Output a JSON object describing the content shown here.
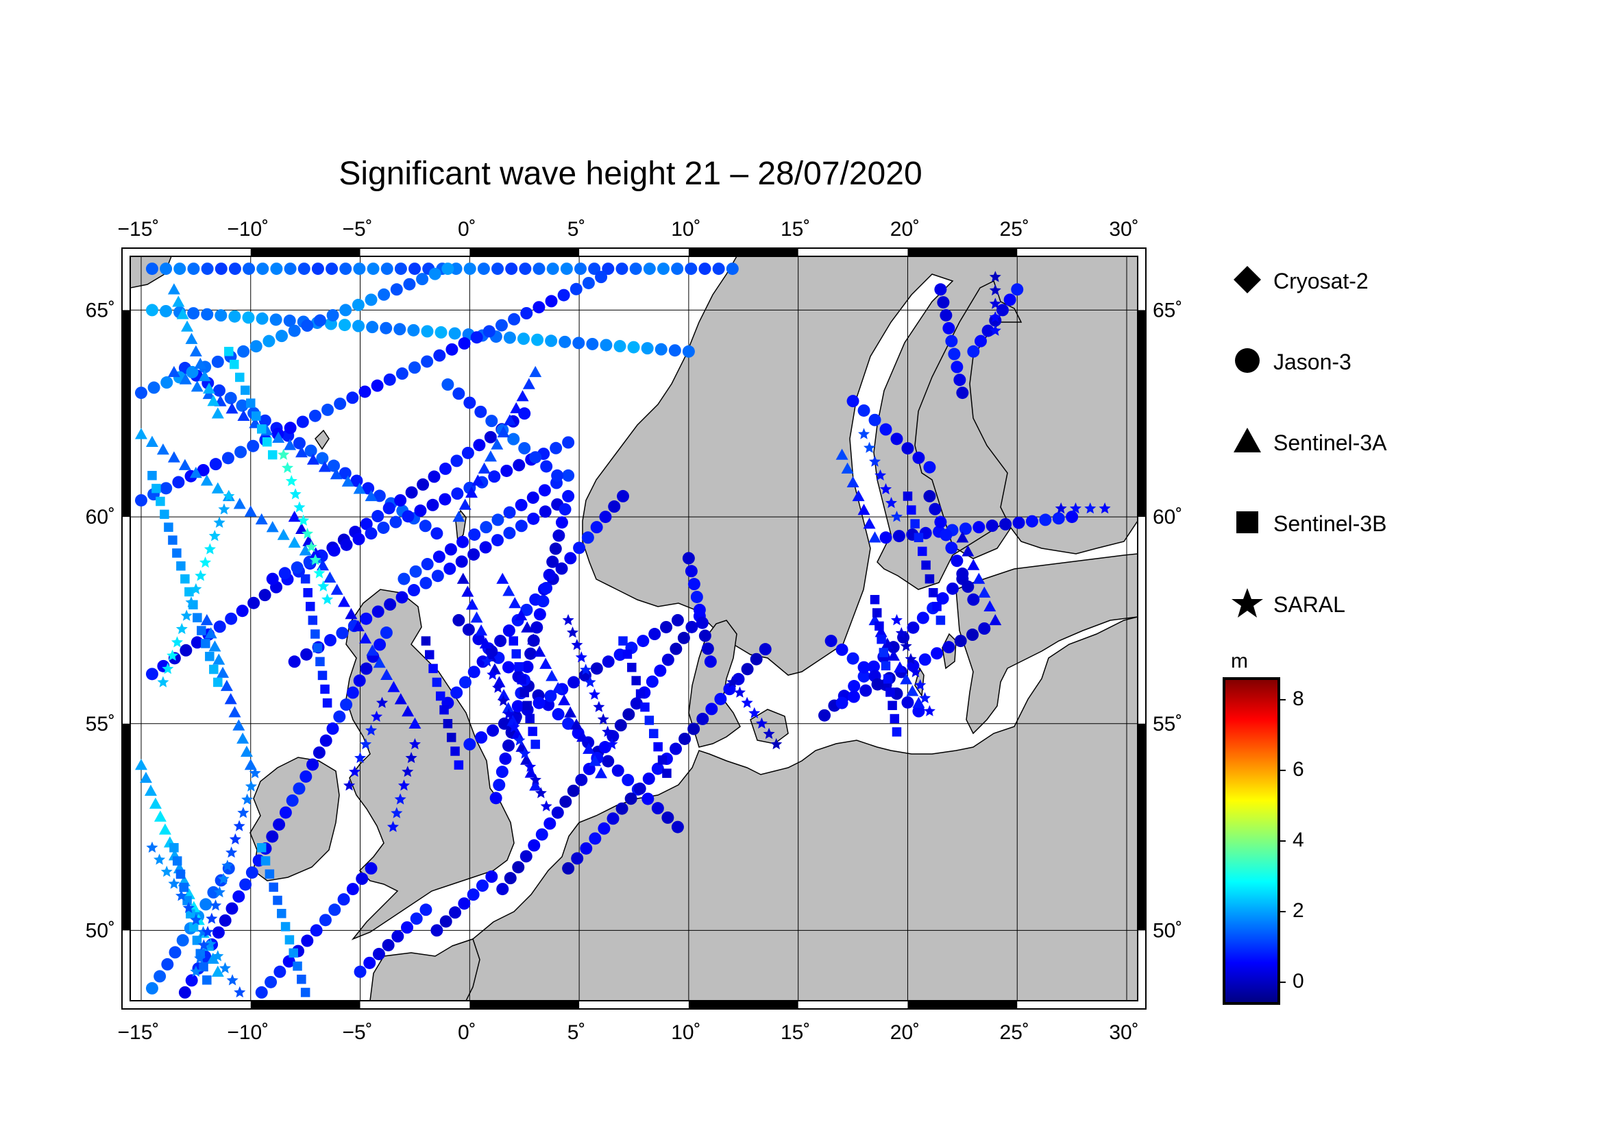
{
  "title": "Significant wave height 21 – 28/07/2020",
  "axes": {
    "lon_ticks": [
      -15,
      -10,
      -5,
      0,
      5,
      10,
      15,
      20,
      25,
      30
    ],
    "lon_labels": [
      "−15˚",
      "−10˚",
      "−5˚",
      "0˚",
      "5˚",
      "10˚",
      "15˚",
      "20˚",
      "25˚",
      "30˚"
    ],
    "lat_ticks": [
      50,
      55,
      60,
      65
    ],
    "lat_labels": [
      "50˚",
      "55˚",
      "60˚",
      "65˚"
    ],
    "lon_range": [
      -15.5,
      30.5
    ],
    "lat_range": [
      48.3,
      66.3
    ]
  },
  "legend": {
    "items": [
      {
        "label": "Cryosat-2",
        "symbol": "diamond-icon"
      },
      {
        "label": "Jason-3",
        "symbol": "circle-icon"
      },
      {
        "label": "Sentinel-3A",
        "symbol": "triangle-icon"
      },
      {
        "label": "Sentinel-3B",
        "symbol": "square-icon"
      },
      {
        "label": "SARAL",
        "symbol": "star-icon"
      }
    ]
  },
  "colorbar": {
    "unit": "m",
    "ticks": [
      "8",
      "6",
      "4",
      "2",
      "0"
    ],
    "range": [
      -0.6,
      8.6
    ],
    "colors": [
      "#00007f",
      "#0000ff",
      "#007fff",
      "#00ffff",
      "#7fff7f",
      "#ffff00",
      "#ff7f00",
      "#ff0000",
      "#7f0000"
    ]
  },
  "colors": {
    "land": "#bebebe",
    "sea": "#ffffff"
  },
  "chart_data": {
    "type": "scatter",
    "title": "Significant wave height 21 – 28/07/2020",
    "xlabel": "",
    "ylabel": "",
    "xlim": [
      -15.5,
      30.5
    ],
    "ylim": [
      48.3,
      66.3
    ],
    "series": [
      {
        "name": "Jason-3",
        "marker": "circle",
        "tracks": [
          {
            "from": [
              -14.5,
              66.0
            ],
            "to": [
              12.0,
              66.0
            ],
            "swh": 1.4
          },
          {
            "from": [
              -14.5,
              65.0
            ],
            "to": [
              10.0,
              64.0
            ],
            "swh": 1.8
          },
          {
            "from": [
              -13.0,
              63.6
            ],
            "to": [
              -1.5,
              59.6
            ],
            "swh": 1.1
          },
          {
            "from": [
              -15.0,
              63.0
            ],
            "to": [
              -1.0,
              66.0
            ],
            "swh": 1.6
          },
          {
            "from": [
              -15.0,
              60.4
            ],
            "to": [
              6.0,
              65.8
            ],
            "swh": 0.9
          },
          {
            "from": [
              -14.5,
              56.2
            ],
            "to": [
              2.5,
              62.5
            ],
            "swh": 0.5
          },
          {
            "from": [
              -8.0,
              56.5
            ],
            "to": [
              4.0,
              60.3
            ],
            "swh": 0.6
          },
          {
            "from": [
              -9.0,
              58.5
            ],
            "to": [
              4.5,
              61.8
            ],
            "swh": 0.7
          },
          {
            "from": [
              -3.0,
              58.5
            ],
            "to": [
              4.5,
              61.0
            ],
            "swh": 0.8
          },
          {
            "from": [
              -1.0,
              63.2
            ],
            "to": [
              4.0,
              61.0
            ],
            "swh": 1.2
          },
          {
            "from": [
              -0.5,
              57.5
            ],
            "to": [
              9.5,
              52.5
            ],
            "swh": 0.4
          },
          {
            "from": [
              -1.0,
              55.5
            ],
            "to": [
              7.0,
              60.5
            ],
            "swh": 0.5
          },
          {
            "from": [
              0.0,
              54.5
            ],
            "to": [
              9.5,
              57.5
            ],
            "swh": 0.4
          },
          {
            "from": [
              1.5,
              51.0
            ],
            "to": [
              10.5,
              57.6
            ],
            "swh": 0.3
          },
          {
            "from": [
              4.5,
              51.5
            ],
            "to": [
              13.5,
              56.8
            ],
            "swh": 0.3
          },
          {
            "from": [
              1.2,
              53.2
            ],
            "to": [
              4.5,
              60.5
            ],
            "swh": 0.4
          },
          {
            "from": [
              -5.0,
              49.0
            ],
            "to": [
              -2.0,
              50.5
            ],
            "swh": 0.5
          },
          {
            "from": [
              -1.5,
              50.0
            ],
            "to": [
              1.0,
              51.3
            ],
            "swh": 0.4
          },
          {
            "from": [
              -13.0,
              48.5
            ],
            "to": [
              -3.8,
              57.2
            ],
            "swh": 0.6
          },
          {
            "from": [
              -9.5,
              48.5
            ],
            "to": [
              -4.5,
              51.5
            ],
            "swh": 0.7
          },
          {
            "from": [
              -14.5,
              48.6
            ],
            "to": [
              -11.0,
              51.5
            ],
            "swh": 1.5
          },
          {
            "from": [
              16.2,
              55.2
            ],
            "to": [
              22.5,
              58.5
            ],
            "swh": 0.4
          },
          {
            "from": [
              16.5,
              57.0
            ],
            "to": [
              20.5,
              55.3
            ],
            "swh": 0.4
          },
          {
            "from": [
              17.0,
              55.5
            ],
            "to": [
              23.5,
              57.3
            ],
            "swh": 0.3
          },
          {
            "from": [
              19.0,
              59.5
            ],
            "to": [
              27.5,
              60.0
            ],
            "swh": 0.5
          },
          {
            "from": [
              21.0,
              60.5
            ],
            "to": [
              23.0,
              58.0
            ],
            "swh": 0.4
          },
          {
            "from": [
              17.5,
              62.8
            ],
            "to": [
              21.0,
              61.2
            ],
            "swh": 0.6
          },
          {
            "from": [
              23.0,
              64.0
            ],
            "to": [
              25.0,
              65.5
            ],
            "swh": 0.5
          },
          {
            "from": [
              21.5,
              65.5
            ],
            "to": [
              22.5,
              63.0
            ],
            "swh": 0.5
          },
          {
            "from": [
              10.0,
              59.0
            ],
            "to": [
              11.0,
              56.5
            ],
            "swh": 0.4
          }
        ]
      },
      {
        "name": "Sentinel-3A",
        "marker": "triangle",
        "tracks": [
          {
            "from": [
              -13.5,
              63.5
            ],
            "to": [
              -4.5,
              60.5
            ],
            "swh": 1.3
          },
          {
            "from": [
              -15.0,
              62.0
            ],
            "to": [
              -7.0,
              59.0
            ],
            "swh": 1.7
          },
          {
            "from": [
              -8.0,
              60.0
            ],
            "to": [
              -2.5,
              55.0
            ],
            "swh": 0.7
          },
          {
            "from": [
              -0.3,
              58.5
            ],
            "to": [
              3.0,
              53.5
            ],
            "swh": 0.5
          },
          {
            "from": [
              1.5,
              58.5
            ],
            "to": [
              6.0,
              53.8
            ],
            "swh": 0.5
          },
          {
            "from": [
              3.0,
              63.5
            ],
            "to": [
              -0.5,
              60.0
            ],
            "swh": 1.0
          },
          {
            "from": [
              -15.0,
              54.0
            ],
            "to": [
              -11.5,
              49.0
            ],
            "swh": 2.3
          },
          {
            "from": [
              -12.0,
              57.5
            ],
            "to": [
              -10.0,
              54.0
            ],
            "swh": 1.5
          },
          {
            "from": [
              17.0,
              61.5
            ],
            "to": [
              18.5,
              59.5
            ],
            "swh": 0.9
          },
          {
            "from": [
              18.5,
              57.5
            ],
            "to": [
              20.5,
              55.5
            ],
            "swh": 0.6
          },
          {
            "from": [
              22.5,
              59.5
            ],
            "to": [
              24.0,
              57.5
            ],
            "swh": 0.5
          },
          {
            "from": [
              -13.5,
              65.5
            ],
            "to": [
              -11.5,
              62.5
            ],
            "swh": 1.9
          }
        ]
      },
      {
        "name": "Sentinel-3B",
        "marker": "square",
        "tracks": [
          {
            "from": [
              -14.5,
              61.0
            ],
            "to": [
              -11.5,
              56.0
            ],
            "swh": 1.9
          },
          {
            "from": [
              -9.5,
              52.0
            ],
            "to": [
              -7.5,
              48.5
            ],
            "swh": 1.7
          },
          {
            "from": [
              -7.5,
              58.5
            ],
            "to": [
              -6.5,
              55.5
            ],
            "swh": 1.0
          },
          {
            "from": [
              -2.0,
              57.0
            ],
            "to": [
              -0.5,
              54.0
            ],
            "swh": 0.4
          },
          {
            "from": [
              2.0,
              57.0
            ],
            "to": [
              3.0,
              54.5
            ],
            "swh": 0.4
          },
          {
            "from": [
              7.0,
              57.0
            ],
            "to": [
              9.0,
              53.8
            ],
            "swh": 0.5
          },
          {
            "from": [
              18.5,
              58.0
            ],
            "to": [
              19.5,
              54.8
            ],
            "swh": 0.6
          },
          {
            "from": [
              20.0,
              60.5
            ],
            "to": [
              21.5,
              57.5
            ],
            "swh": 0.5
          },
          {
            "from": [
              -11.0,
              64.0
            ],
            "to": [
              -9.0,
              61.5
            ],
            "swh": 2.2
          },
          {
            "from": [
              -13.5,
              52.0
            ],
            "to": [
              -12.0,
              48.8
            ],
            "swh": 1.8
          }
        ]
      },
      {
        "name": "SARAL",
        "marker": "star",
        "tracks": [
          {
            "from": [
              -14.5,
              52.0
            ],
            "to": [
              -10.5,
              48.5
            ],
            "swh": 1.6
          },
          {
            "from": [
              -12.5,
              49.0
            ],
            "to": [
              -9.8,
              53.8
            ],
            "swh": 1.4
          },
          {
            "from": [
              -11.0,
              60.5
            ],
            "to": [
              -14.0,
              56.0
            ],
            "swh": 2.4
          },
          {
            "from": [
              -5.5,
              53.5
            ],
            "to": [
              -4.0,
              55.5
            ],
            "swh": 0.6
          },
          {
            "from": [
              -3.5,
              52.5
            ],
            "to": [
              -2.5,
              54.5
            ],
            "swh": 0.5
          },
          {
            "from": [
              0.8,
              56.5
            ],
            "to": [
              3.5,
              53.0
            ],
            "swh": 0.5
          },
          {
            "from": [
              4.5,
              57.5
            ],
            "to": [
              6.5,
              54.5
            ],
            "swh": 0.5
          },
          {
            "from": [
              12.0,
              56.0
            ],
            "to": [
              14.0,
              54.5
            ],
            "swh": 0.3
          },
          {
            "from": [
              18.0,
              62.0
            ],
            "to": [
              19.5,
              60.0
            ],
            "swh": 0.9
          },
          {
            "from": [
              19.5,
              57.5
            ],
            "to": [
              21.0,
              55.3
            ],
            "swh": 0.4
          },
          {
            "from": [
              24.0,
              65.8
            ],
            "to": [
              24.0,
              64.5
            ],
            "swh": 0.3
          },
          {
            "from": [
              27.0,
              60.2
            ],
            "to": [
              29.0,
              60.2
            ],
            "swh": 0.4
          },
          {
            "from": [
              -8.5,
              61.5
            ],
            "to": [
              -6.5,
              58.0
            ],
            "swh": 3.0
          }
        ]
      }
    ]
  }
}
